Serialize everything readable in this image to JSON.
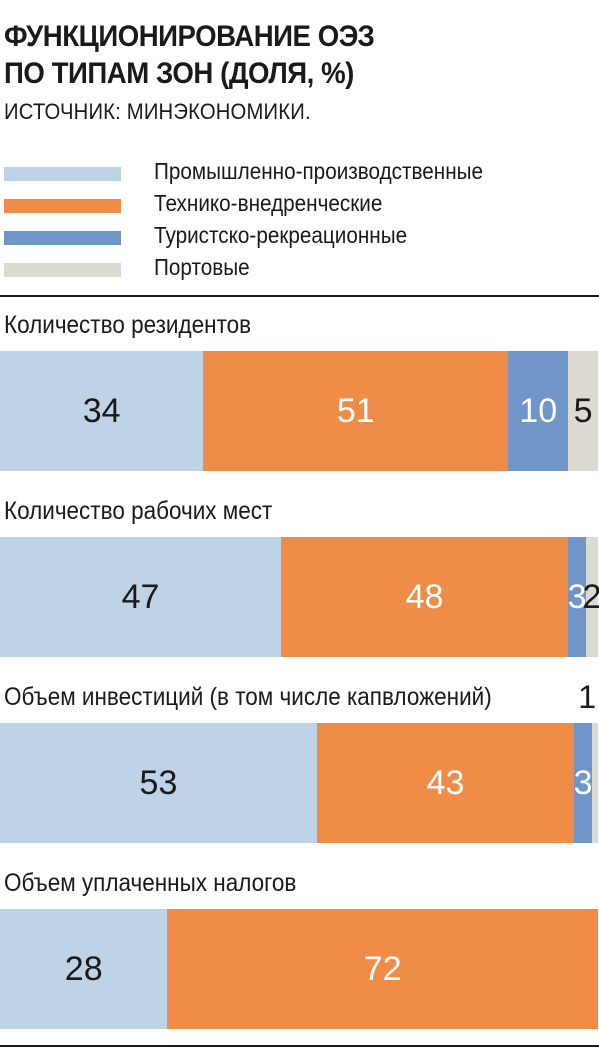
{
  "title_lines": [
    "ФУНКЦИОНИРОВАНИЕ ОЭЗ",
    "ПО ТИПАМ ЗОН (ДОЛЯ, %)"
  ],
  "source": "ИСТОЧНИК: МИНЭКОНОМИКИ.",
  "colors": {
    "industrial": "#bed3e6",
    "technical": "#ef8c48",
    "tourist": "#6f95c9",
    "port": "#dcdad1"
  },
  "chart_data": {
    "type": "bar",
    "orientation": "horizontal-stacked-100",
    "series": [
      {
        "name": "Промышленно-производственные",
        "color_key": "industrial"
      },
      {
        "name": "Технико-внедренческие",
        "color_key": "technical"
      },
      {
        "name": "Туристско-рекреационные",
        "color_key": "tourist"
      },
      {
        "name": "Портовые",
        "color_key": "port"
      }
    ],
    "categories": [
      "Количество резидентов",
      "Количество рабочих мест",
      "Объем инвестиций (в том числе капвложений)",
      "Объем уплаченных налогов"
    ],
    "values": [
      [
        34,
        51,
        10,
        5
      ],
      [
        47,
        48,
        3,
        2
      ],
      [
        53,
        43,
        3,
        1
      ],
      [
        28,
        72,
        0,
        0
      ]
    ],
    "data_labels": [
      [
        "34",
        "51",
        "10",
        "5"
      ],
      [
        "47",
        "48",
        "3",
        "2"
      ],
      [
        "53",
        "43",
        "3",
        "1"
      ],
      [
        "28",
        "72",
        "",
        ""
      ]
    ],
    "ylim": [
      0,
      100
    ]
  }
}
